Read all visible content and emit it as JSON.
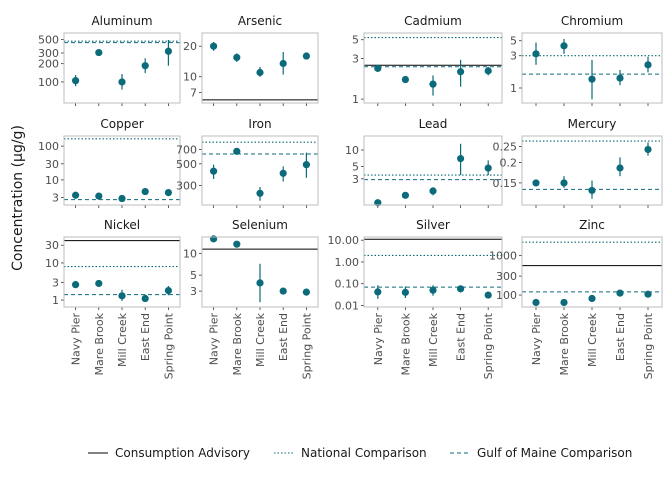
{
  "y_axis_label": "Concentration (μg/g)",
  "legend": [
    {
      "label": "Consumption Advisory",
      "style": "solid"
    },
    {
      "label": "National Comparison",
      "style": "dotted"
    },
    {
      "label": "Gulf of Maine Comparison",
      "style": "dashed"
    }
  ],
  "colors": {
    "point": "#0b6b7a",
    "reference": "#0b6b7a",
    "advisory": "#000000",
    "panel_border": "#bdbdbd"
  },
  "chart_data": {
    "type": "scatter",
    "layout": "faceted 3x4 grid, free y scales",
    "categories": [
      "Navy Pier",
      "Mare Brook",
      "Mill Creek",
      "East End",
      "Spring Point"
    ],
    "panels": [
      {
        "title": "Aluminum",
        "scale": "log",
        "ylim": [
          45,
          640
        ],
        "ticks": [
          100,
          200,
          300,
          500
        ],
        "points": [
          {
            "y": 105,
            "lo": 85,
            "hi": 130
          },
          {
            "y": 305,
            "lo": 295,
            "hi": 320
          },
          {
            "y": 100,
            "lo": 75,
            "hi": 135
          },
          {
            "y": 185,
            "lo": 140,
            "hi": 245
          },
          {
            "y": 320,
            "lo": 185,
            "hi": 490
          }
        ],
        "refs": {
          "national": 470,
          "gulf": 445
        }
      },
      {
        "title": "Arsenic",
        "scale": "log",
        "ylim": [
          5.5,
          27
        ],
        "ticks": [
          7,
          10,
          20
        ],
        "points": [
          {
            "y": 20,
            "lo": 18,
            "hi": 22
          },
          {
            "y": 15.5,
            "lo": 14,
            "hi": 17
          },
          {
            "y": 11,
            "lo": 10,
            "hi": 12.5
          },
          {
            "y": 13.5,
            "lo": 10.5,
            "hi": 17.5
          },
          {
            "y": 16,
            "lo": 15.5,
            "hi": 16.5
          }
        ],
        "refs": {
          "advisory": 5.9
        }
      },
      {
        "title": "Cadmium",
        "scale": "log",
        "ylim": [
          0.9,
          6.0
        ],
        "ticks": [
          1,
          3,
          5
        ],
        "points": [
          {
            "y": 2.3,
            "lo": 2.1,
            "hi": 2.5
          },
          {
            "y": 1.7,
            "lo": 1.55,
            "hi": 1.85
          },
          {
            "y": 1.5,
            "lo": 1.1,
            "hi": 1.9
          },
          {
            "y": 2.1,
            "lo": 1.4,
            "hi": 2.9
          },
          {
            "y": 2.15,
            "lo": 1.9,
            "hi": 2.4
          }
        ],
        "refs": {
          "advisory": 2.5,
          "national": 5.3,
          "gulf": 2.4
        }
      },
      {
        "title": "Chromium",
        "scale": "log",
        "ylim": [
          0.6,
          6.5
        ],
        "ticks": [
          1,
          3,
          5
        ],
        "points": [
          {
            "y": 3.2,
            "lo": 2.2,
            "hi": 4.7
          },
          {
            "y": 4.2,
            "lo": 3.2,
            "hi": 5.3
          },
          {
            "y": 1.35,
            "lo": 0.68,
            "hi": 2.6
          },
          {
            "y": 1.4,
            "lo": 1.1,
            "hi": 1.85
          },
          {
            "y": 2.2,
            "lo": 1.7,
            "hi": 2.9
          }
        ],
        "refs": {
          "national": 3.0,
          "gulf": 1.6
        }
      },
      {
        "title": "Copper",
        "scale": "log",
        "ylim": [
          1.8,
          200
        ],
        "ticks": [
          3,
          10,
          30,
          100
        ],
        "points": [
          {
            "y": 3.5,
            "lo": 3.0,
            "hi": 4.1
          },
          {
            "y": 3.3,
            "lo": 2.9,
            "hi": 3.7
          },
          {
            "y": 2.8,
            "lo": 2.3,
            "hi": 3.3
          },
          {
            "y": 4.5,
            "lo": 3.8,
            "hi": 5.3
          },
          {
            "y": 4.2,
            "lo": 3.6,
            "hi": 5.0
          }
        ],
        "refs": {
          "national": 165,
          "gulf": 2.6
        }
      },
      {
        "title": "Iron",
        "scale": "log",
        "ylim": [
          190,
          960
        ],
        "ticks": [
          300,
          500,
          700
        ],
        "points": [
          {
            "y": 420,
            "lo": 350,
            "hi": 490
          },
          {
            "y": 670,
            "lo": 640,
            "hi": 700
          },
          {
            "y": 250,
            "lo": 210,
            "hi": 290
          },
          {
            "y": 400,
            "lo": 330,
            "hi": 470
          },
          {
            "y": 490,
            "lo": 360,
            "hi": 650
          }
        ],
        "refs": {
          "national": 830,
          "gulf": 630
        }
      },
      {
        "title": "Lead",
        "scale": "log",
        "ylim": [
          1.0,
          18
        ],
        "ticks": [
          3,
          5,
          10
        ],
        "points": [
          {
            "y": 1.1,
            "lo": 1.05,
            "hi": 1.15
          },
          {
            "y": 1.5,
            "lo": 1.35,
            "hi": 1.65
          },
          {
            "y": 1.8,
            "lo": 1.5,
            "hi": 2.1
          },
          {
            "y": 7.0,
            "lo": 3.5,
            "hi": 13
          },
          {
            "y": 4.7,
            "lo": 3.5,
            "hi": 6.5
          }
        ],
        "refs": {
          "national": 3.5,
          "gulf": 2.9
        }
      },
      {
        "title": "Mercury",
        "scale": "log",
        "ylim": [
          0.11,
          0.29
        ],
        "ticks": [
          0.15,
          0.2,
          0.25
        ],
        "points": [
          {
            "y": 0.15,
            "lo": 0.145,
            "hi": 0.155
          },
          {
            "y": 0.15,
            "lo": 0.14,
            "hi": 0.165
          },
          {
            "y": 0.135,
            "lo": 0.12,
            "hi": 0.155
          },
          {
            "y": 0.185,
            "lo": 0.165,
            "hi": 0.215
          },
          {
            "y": 0.24,
            "lo": 0.22,
            "hi": 0.265
          }
        ],
        "refs": {
          "national": 0.27,
          "gulf": 0.137
        }
      },
      {
        "title": "Nickel",
        "scale": "log",
        "ylim": [
          0.65,
          50
        ],
        "ticks": [
          1,
          3,
          10,
          30
        ],
        "points": [
          {
            "y": 2.6,
            "lo": 2.3,
            "hi": 2.9
          },
          {
            "y": 2.8,
            "lo": 2.6,
            "hi": 3.0
          },
          {
            "y": 1.3,
            "lo": 0.95,
            "hi": 1.9
          },
          {
            "y": 1.1,
            "lo": 0.9,
            "hi": 1.4
          },
          {
            "y": 1.8,
            "lo": 1.35,
            "hi": 2.4
          }
        ],
        "refs": {
          "advisory": 40,
          "national": 8,
          "gulf": 1.4
        }
      },
      {
        "title": "Selenium",
        "scale": "log",
        "ylim": [
          1.8,
          17
        ],
        "ticks": [
          3,
          5,
          10
        ],
        "points": [
          {
            "y": 16,
            "lo": 15.5,
            "hi": 16.5
          },
          {
            "y": 13.5,
            "lo": 12.8,
            "hi": 14.2
          },
          {
            "y": 3.9,
            "lo": 2.1,
            "hi": 7.2
          },
          {
            "y": 3.0,
            "lo": 2.75,
            "hi": 3.3
          },
          {
            "y": 2.9,
            "lo": 2.7,
            "hi": 3.1
          }
        ],
        "refs": {
          "advisory": 11.5
        }
      },
      {
        "title": "Silver",
        "scale": "log",
        "ylim": [
          0.0085,
          14
        ],
        "ticks": [
          0.01,
          0.1,
          1.0,
          10.0
        ],
        "tick_labels": [
          "0.01",
          "0.10",
          "1.00",
          "10.00"
        ],
        "points": [
          {
            "y": 0.042,
            "lo": 0.02,
            "hi": 0.085
          },
          {
            "y": 0.04,
            "lo": 0.022,
            "hi": 0.075
          },
          {
            "y": 0.05,
            "lo": 0.028,
            "hi": 0.085
          },
          {
            "y": 0.058,
            "lo": 0.045,
            "hi": 0.072
          },
          {
            "y": 0.03,
            "lo": 0.024,
            "hi": 0.038
          }
        ],
        "refs": {
          "advisory": 11,
          "national": 2.0,
          "gulf": 0.07
        }
      },
      {
        "title": "Zinc",
        "scale": "log",
        "ylim": [
          50,
          2900
        ],
        "ticks": [
          100,
          300,
          1000
        ],
        "points": [
          {
            "y": 65,
            "lo": 60,
            "hi": 70
          },
          {
            "y": 65,
            "lo": 60,
            "hi": 72
          },
          {
            "y": 82,
            "lo": 75,
            "hi": 90
          },
          {
            "y": 112,
            "lo": 102,
            "hi": 122
          },
          {
            "y": 105,
            "lo": 95,
            "hi": 116
          }
        ],
        "refs": {
          "advisory": 550,
          "national": 2150,
          "gulf": 120
        }
      }
    ]
  }
}
